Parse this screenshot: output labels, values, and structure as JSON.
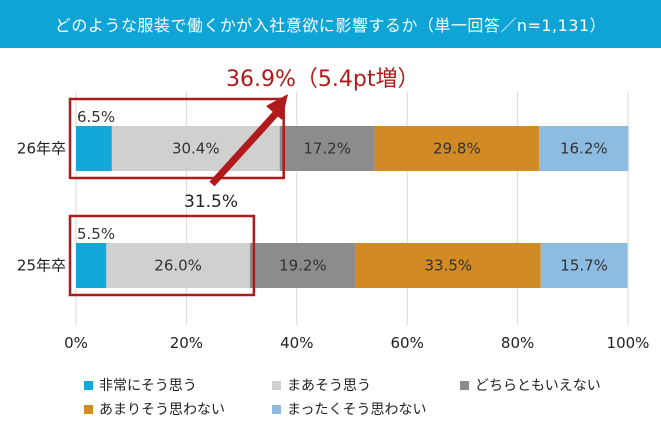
{
  "header": {
    "title": "どのような服装で働くかが入社意欲に影響するか（単一回答／n=1,131）"
  },
  "chart_data": {
    "type": "bar",
    "stacked": true,
    "orientation": "horizontal",
    "categories": [
      "26年卒",
      "25年卒"
    ],
    "series": [
      {
        "name": "非常にそう思う",
        "values": [
          6.5,
          5.5
        ],
        "color": "#12a8d8"
      },
      {
        "name": "まあそう思う",
        "values": [
          30.4,
          26.0
        ],
        "color": "#d0d0d0"
      },
      {
        "name": "どちらともいえない",
        "values": [
          17.2,
          19.2
        ],
        "color": "#8c8c8c"
      },
      {
        "name": "あまりそう思わない",
        "values": [
          29.8,
          33.5
        ],
        "color": "#d18a24"
      },
      {
        "name": "まったくそう思わない",
        "values": [
          16.2,
          15.7
        ],
        "color": "#8ebbe0"
      }
    ],
    "value_labels": [
      [
        "6.5%",
        "30.4%",
        "17.2%",
        "29.8%",
        "16.2%"
      ],
      [
        "5.5%",
        "26.0%",
        "19.2%",
        "33.5%",
        "15.7%"
      ]
    ],
    "x_ticks": [
      0,
      20,
      40,
      60,
      80,
      100
    ],
    "x_tick_labels": [
      "0%",
      "20%",
      "40%",
      "60%",
      "80%",
      "100%"
    ],
    "xlim": [
      0,
      100
    ],
    "grid": true,
    "legend_position": "bottom",
    "annotations": {
      "sum_26": "31.5%",
      "sum_25": "",
      "increase": "36.9%（5.4pt増）",
      "highlight_color": "#b11a1a"
    }
  }
}
